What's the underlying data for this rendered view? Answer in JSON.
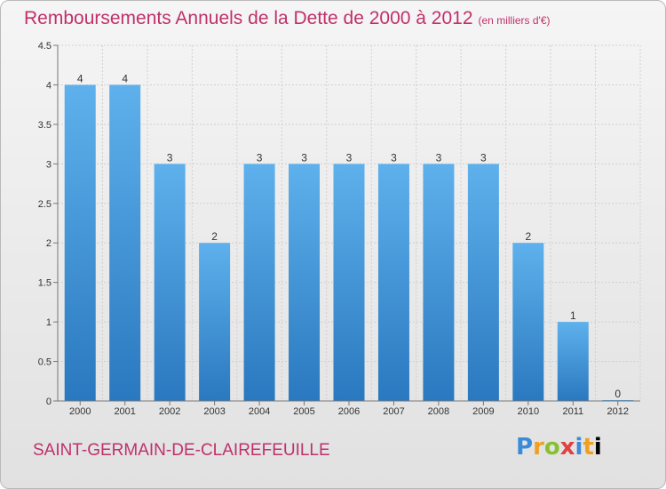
{
  "chart_data": {
    "type": "bar",
    "title": "Remboursements Annuels de la Dette de 2000 à 2012",
    "subtitle": "(en milliers d'€)",
    "categories": [
      "2000",
      "2001",
      "2002",
      "2003",
      "2004",
      "2005",
      "2006",
      "2007",
      "2008",
      "2009",
      "2010",
      "2011",
      "2012"
    ],
    "values": [
      4,
      4,
      3,
      2,
      3,
      3,
      3,
      3,
      3,
      3,
      2,
      1,
      0
    ],
    "value_labels": [
      "4",
      "4",
      "3",
      "2",
      "3",
      "3",
      "3",
      "3",
      "3",
      "3",
      "2",
      "1",
      "0"
    ],
    "y_ticks": [
      "0",
      "0.5",
      "1",
      "1.5",
      "2",
      "2.5",
      "3",
      "3.5",
      "4",
      "4.5"
    ],
    "ylim": [
      0,
      4.5
    ],
    "xlabel": "",
    "ylabel": "",
    "bar_color": "#3a8fd6"
  },
  "footer": {
    "city": "SAINT-GERMAIN-DE-CLAIREFEUILLE",
    "logo_letters": [
      "P",
      "r",
      "o",
      "x",
      "i",
      "t",
      "i"
    ]
  }
}
